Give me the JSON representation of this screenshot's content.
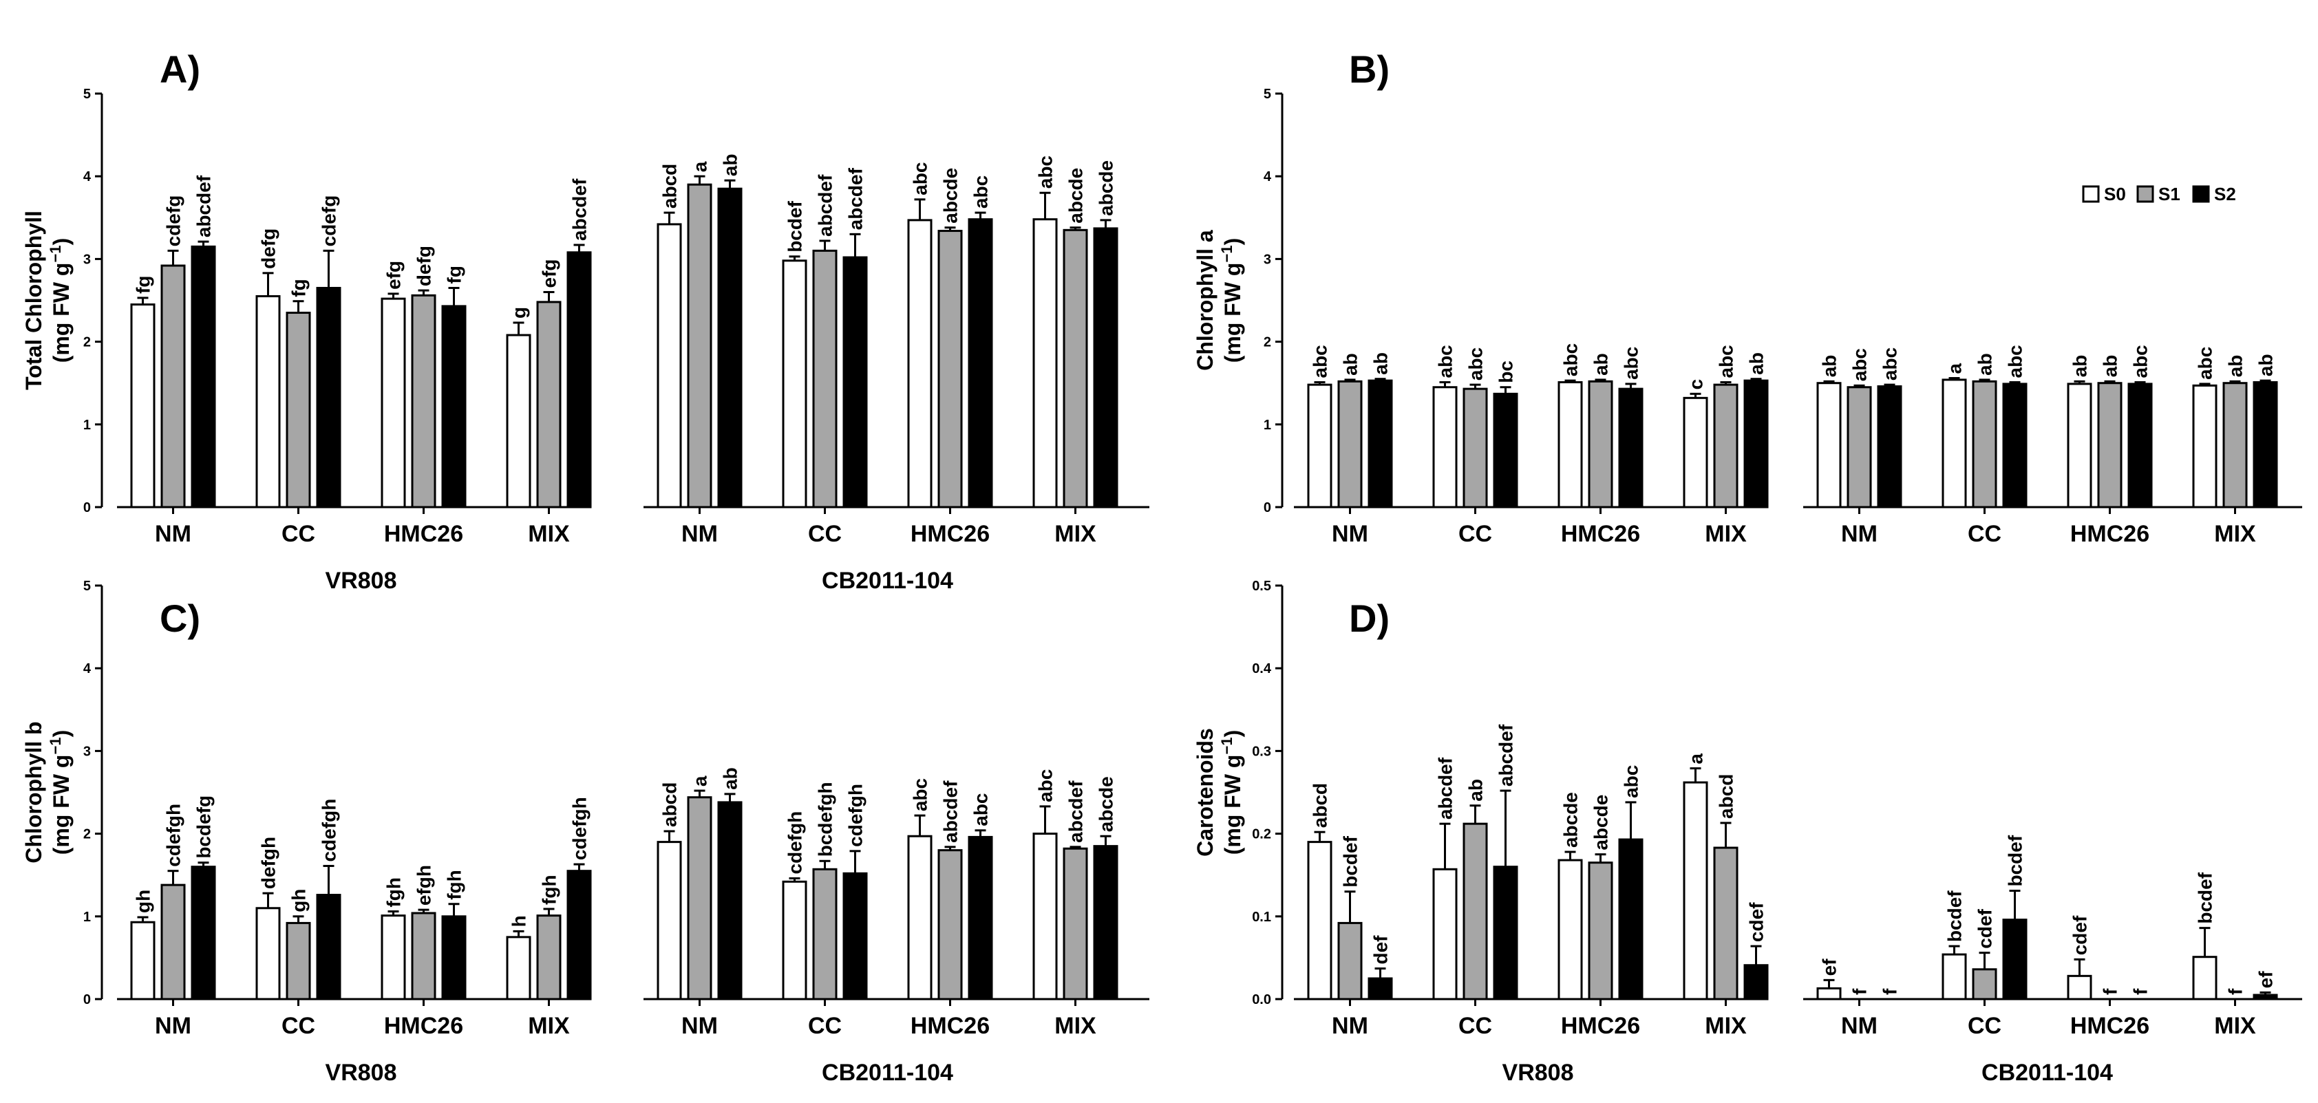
{
  "legend": {
    "entries": [
      {
        "label": "S0",
        "color": "#ffffff"
      },
      {
        "label": "S1",
        "color": "#a6a6a6"
      },
      {
        "label": "S2",
        "color": "#000000"
      }
    ]
  },
  "chart_data": [
    {
      "id": "A",
      "panel_label": "A)",
      "type": "bar",
      "ylabel_line1": "Total Chlorophyll",
      "ylabel_line2": "(mg FW g",
      "ylabel_sup": "−1",
      "ylabel_close": ")",
      "ylim": [
        0,
        5
      ],
      "yticks": [
        "0",
        "1",
        "2",
        "3",
        "4",
        "5"
      ],
      "ytick_values": [
        0,
        1,
        2,
        3,
        4,
        5
      ],
      "show_groups": true,
      "groups": [
        {
          "name": "VR808",
          "categories": [
            "NM",
            "CC",
            "HMC26",
            "MIX"
          ],
          "values": [
            [
              2.45,
              2.92,
              3.15
            ],
            [
              2.55,
              2.35,
              2.65
            ],
            [
              2.52,
              2.56,
              2.43
            ],
            [
              2.08,
              2.48,
              3.08
            ]
          ],
          "errors": [
            [
              0.08,
              0.18,
              0.06
            ],
            [
              0.28,
              0.14,
              0.45
            ],
            [
              0.06,
              0.06,
              0.22
            ],
            [
              0.15,
              0.12,
              0.09
            ]
          ],
          "letters": [
            [
              "fg",
              "cdefg",
              "abcdef"
            ],
            [
              "defg",
              "fg",
              "cdefg"
            ],
            [
              "efg",
              "defg",
              "fg"
            ],
            [
              "g",
              "efg",
              "abcdef"
            ]
          ]
        },
        {
          "name": "CB2011-104",
          "categories": [
            "NM",
            "CC",
            "HMC26",
            "MIX"
          ],
          "values": [
            [
              3.42,
              3.9,
              3.85
            ],
            [
              2.98,
              3.1,
              3.02
            ],
            [
              3.47,
              3.34,
              3.48
            ],
            [
              3.48,
              3.35,
              3.37
            ]
          ],
          "errors": [
            [
              0.14,
              0.1,
              0.1
            ],
            [
              0.05,
              0.12,
              0.28
            ],
            [
              0.25,
              0.04,
              0.08
            ],
            [
              0.32,
              0.03,
              0.1
            ]
          ],
          "letters": [
            [
              "abcd",
              "a",
              "ab"
            ],
            [
              "bcdef",
              "abcdef",
              "abcdef"
            ],
            [
              "abc",
              "abcde",
              "abc"
            ],
            [
              "abc",
              "abcde",
              "abcde"
            ]
          ]
        }
      ]
    },
    {
      "id": "B",
      "panel_label": "B)",
      "type": "bar",
      "ylabel_line1": "Chlorophyll a",
      "ylabel_line2": "(mg FW g",
      "ylabel_sup": "−1",
      "ylabel_close": ")",
      "ylim": [
        0,
        5
      ],
      "yticks": [
        "0",
        "1",
        "2",
        "3",
        "4",
        "5"
      ],
      "ytick_values": [
        0,
        1,
        2,
        3,
        4,
        5
      ],
      "show_groups": false,
      "groups": [
        {
          "name": "VR808",
          "categories": [
            "NM",
            "CC",
            "HMC26",
            "MIX"
          ],
          "values": [
            [
              1.48,
              1.52,
              1.53
            ],
            [
              1.45,
              1.43,
              1.37
            ],
            [
              1.51,
              1.52,
              1.43
            ],
            [
              1.32,
              1.48,
              1.53
            ]
          ],
          "errors": [
            [
              0.03,
              0.02,
              0.02
            ],
            [
              0.06,
              0.05,
              0.08
            ],
            [
              0.02,
              0.02,
              0.06
            ],
            [
              0.05,
              0.03,
              0.02
            ]
          ],
          "letters": [
            [
              "abc",
              "ab",
              "ab"
            ],
            [
              "abc",
              "abc",
              "bc"
            ],
            [
              "abc",
              "ab",
              "abc"
            ],
            [
              "c",
              "abc",
              "ab"
            ]
          ]
        },
        {
          "name": "CB2011-104",
          "categories": [
            "NM",
            "CC",
            "HMC26",
            "MIX"
          ],
          "values": [
            [
              1.5,
              1.45,
              1.46
            ],
            [
              1.54,
              1.52,
              1.49
            ],
            [
              1.49,
              1.5,
              1.49
            ],
            [
              1.47,
              1.5,
              1.51
            ]
          ],
          "errors": [
            [
              0.02,
              0.02,
              0.02
            ],
            [
              0.02,
              0.02,
              0.02
            ],
            [
              0.03,
              0.02,
              0.02
            ],
            [
              0.02,
              0.02,
              0.02
            ]
          ],
          "letters": [
            [
              "ab",
              "abc",
              "abc"
            ],
            [
              "a",
              "ab",
              "abc"
            ],
            [
              "ab",
              "ab",
              "abc"
            ],
            [
              "abc",
              "ab",
              "ab"
            ]
          ]
        }
      ]
    },
    {
      "id": "C",
      "panel_label": "C)",
      "type": "bar",
      "ylabel_line1": "Chlorophyll b",
      "ylabel_line2": "(mg FW g",
      "ylabel_sup": "−1",
      "ylabel_close": ")",
      "ylim": [
        0,
        5
      ],
      "yticks": [
        "0",
        "1",
        "2",
        "3",
        "4",
        "5"
      ],
      "ytick_values": [
        0,
        1,
        2,
        3,
        4,
        5
      ],
      "show_groups": true,
      "groups": [
        {
          "name": "VR808",
          "categories": [
            "NM",
            "CC",
            "HMC26",
            "MIX"
          ],
          "values": [
            [
              0.93,
              1.38,
              1.6
            ],
            [
              1.1,
              0.92,
              1.26
            ],
            [
              1.01,
              1.04,
              1.0
            ],
            [
              0.75,
              1.01,
              1.55
            ]
          ],
          "errors": [
            [
              0.06,
              0.17,
              0.05
            ],
            [
              0.18,
              0.08,
              0.35
            ],
            [
              0.05,
              0.04,
              0.15
            ],
            [
              0.07,
              0.08,
              0.08
            ]
          ],
          "letters": [
            [
              "gh",
              "cdefgh",
              "bcdefg"
            ],
            [
              "defgh",
              "gh",
              "cdefgh"
            ],
            [
              "fgh",
              "efgh",
              "fgh"
            ],
            [
              "h",
              "fgh",
              "cdefgh"
            ]
          ]
        },
        {
          "name": "CB2011-104",
          "categories": [
            "NM",
            "CC",
            "HMC26",
            "MIX"
          ],
          "values": [
            [
              1.9,
              2.44,
              2.38
            ],
            [
              1.42,
              1.57,
              1.52
            ],
            [
              1.97,
              1.8,
              1.96
            ],
            [
              2.0,
              1.82,
              1.85
            ]
          ],
          "errors": [
            [
              0.13,
              0.08,
              0.1
            ],
            [
              0.04,
              0.1,
              0.27
            ],
            [
              0.25,
              0.04,
              0.08
            ],
            [
              0.33,
              0.02,
              0.12
            ]
          ],
          "letters": [
            [
              "abcd",
              "a",
              "ab"
            ],
            [
              "cdefgh",
              "bcdefgh",
              "cdefgh"
            ],
            [
              "abc",
              "abcdef",
              "abc"
            ],
            [
              "abc",
              "abcdef",
              "abcde"
            ]
          ]
        }
      ]
    },
    {
      "id": "D",
      "panel_label": "D)",
      "type": "bar",
      "ylabel_line1": "Carotenoids",
      "ylabel_line2": "(mg FW g",
      "ylabel_sup": "−1",
      "ylabel_close": ")",
      "ylim": [
        0,
        0.5
      ],
      "yticks": [
        "0.0",
        "0.1",
        "0.2",
        "0.3",
        "0.4",
        "0.5"
      ],
      "ytick_values": [
        0,
        0.1,
        0.2,
        0.3,
        0.4,
        0.5
      ],
      "show_groups": true,
      "groups": [
        {
          "name": "VR808",
          "categories": [
            "NM",
            "CC",
            "HMC26",
            "MIX"
          ],
          "values": [
            [
              0.19,
              0.092,
              0.025
            ],
            [
              0.157,
              0.212,
              0.16
            ],
            [
              0.168,
              0.165,
              0.193
            ],
            [
              0.262,
              0.183,
              0.041
            ]
          ],
          "errors": [
            [
              0.012,
              0.038,
              0.012
            ],
            [
              0.055,
              0.022,
              0.092
            ],
            [
              0.01,
              0.01,
              0.045
            ],
            [
              0.017,
              0.03,
              0.023
            ]
          ],
          "letters": [
            [
              "abcd",
              "bcdef",
              "def"
            ],
            [
              "abcdef",
              "ab",
              "abcdef"
            ],
            [
              "abcde",
              "abcde",
              "abc"
            ],
            [
              "a",
              "abcd",
              "cdef"
            ]
          ]
        },
        {
          "name": "CB2011-104",
          "categories": [
            "NM",
            "CC",
            "HMC26",
            "MIX"
          ],
          "values": [
            [
              0.013,
              0.0,
              0.0
            ],
            [
              0.054,
              0.036,
              0.096
            ],
            [
              0.028,
              0.0,
              0.0
            ],
            [
              0.051,
              0.0,
              0.005
            ]
          ],
          "errors": [
            [
              0.01,
              0.0,
              0.0
            ],
            [
              0.01,
              0.02,
              0.035
            ],
            [
              0.02,
              0.0,
              0.0
            ],
            [
              0.035,
              0.0,
              0.003
            ]
          ],
          "letters": [
            [
              "ef",
              "f",
              "f"
            ],
            [
              "bcdef",
              "cdef",
              "bcdef"
            ],
            [
              "cdef",
              "f",
              "f"
            ],
            [
              "bcdef",
              "f",
              "ef"
            ]
          ]
        }
      ]
    }
  ]
}
